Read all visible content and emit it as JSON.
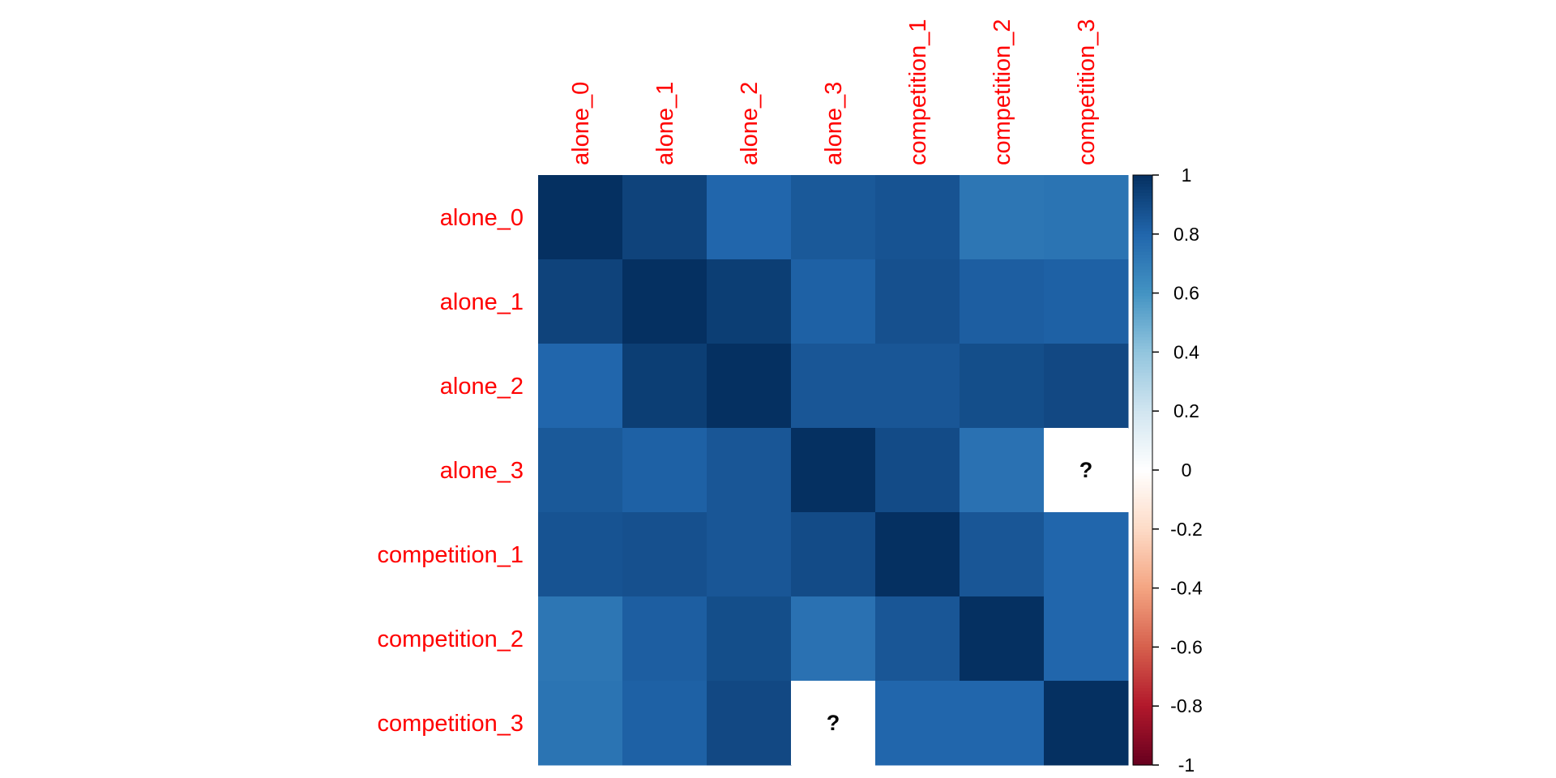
{
  "chart_data": {
    "type": "heatmap",
    "title": "",
    "row_labels": [
      "alone_0",
      "alone_1",
      "alone_2",
      "alone_3",
      "competition_1",
      "competition_2",
      "competition_3"
    ],
    "col_labels": [
      "alone_0",
      "alone_1",
      "alone_2",
      "alone_3",
      "competition_1",
      "competition_2",
      "competition_3"
    ],
    "values": [
      [
        1.0,
        0.93,
        0.8,
        0.85,
        0.87,
        0.73,
        0.74
      ],
      [
        0.93,
        1.0,
        0.95,
        0.82,
        0.88,
        0.83,
        0.82
      ],
      [
        0.8,
        0.95,
        1.0,
        0.86,
        0.86,
        0.89,
        0.91
      ],
      [
        0.85,
        0.82,
        0.86,
        1.0,
        0.9,
        0.75,
        null
      ],
      [
        0.87,
        0.88,
        0.86,
        0.9,
        1.0,
        0.86,
        0.8
      ],
      [
        0.73,
        0.83,
        0.89,
        0.75,
        0.86,
        1.0,
        0.8
      ],
      [
        0.74,
        0.82,
        0.91,
        null,
        0.8,
        0.8,
        1.0
      ]
    ],
    "missing_label": "?",
    "label_color": "#FF0000",
    "colorbar": {
      "ticks": [
        "1",
        "0.8",
        "0.6",
        "0.4",
        "0.2",
        "0",
        "-0.2",
        "-0.4",
        "-0.6",
        "-0.8",
        "-1"
      ],
      "range": [
        -1,
        1
      ],
      "palette": [
        "#67001F",
        "#B2182B",
        "#D6604D",
        "#F4A582",
        "#FDDBC7",
        "#FFFFFF",
        "#D1E5F0",
        "#92C5DE",
        "#4393C3",
        "#2166AC",
        "#053061"
      ]
    }
  }
}
